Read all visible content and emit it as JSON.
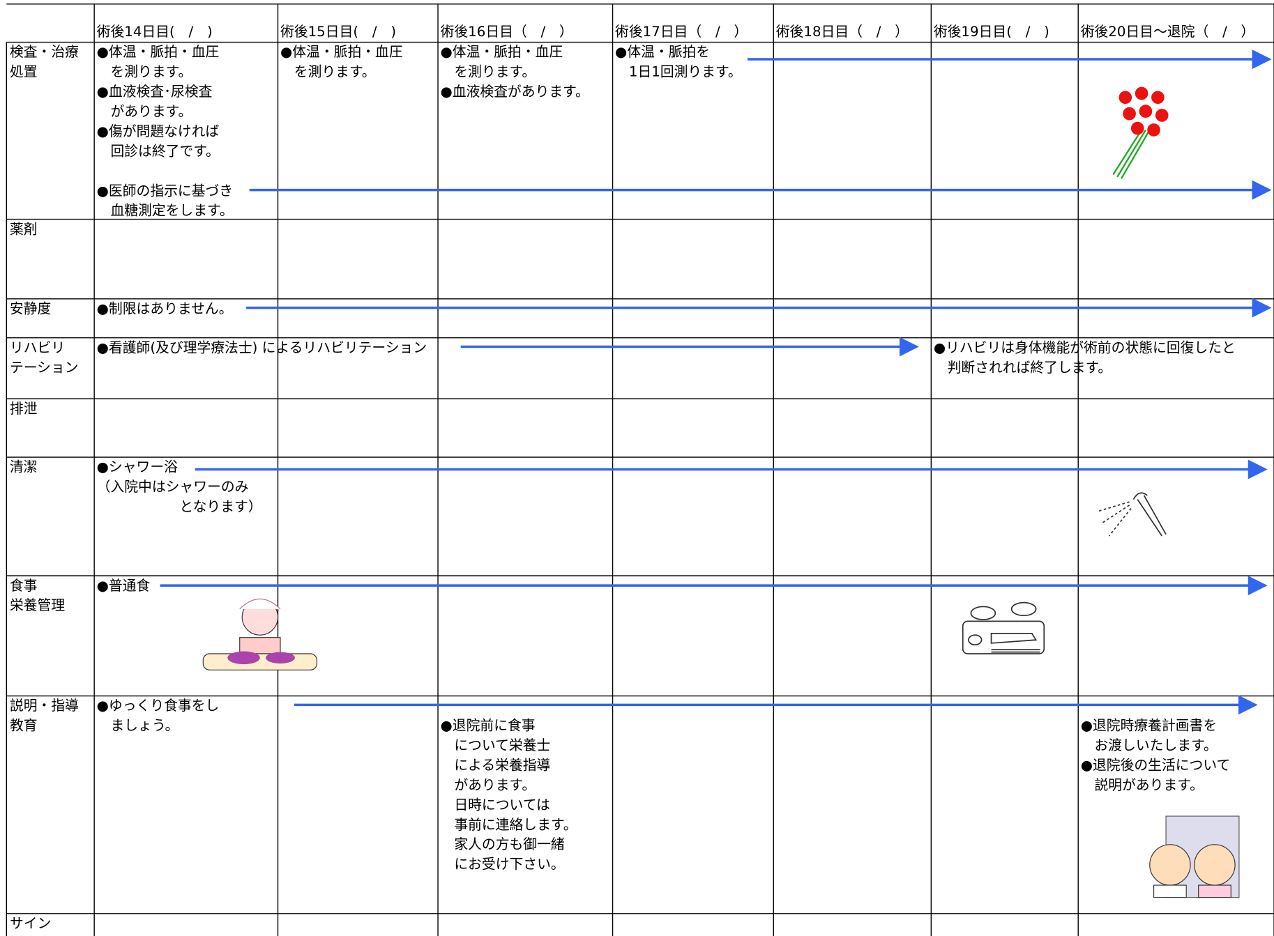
{
  "table": {
    "header": [
      "術後14日目(　/　)",
      "術後15日目(　/　)",
      "術後16日目（　/　）",
      "術後17日目（　/　）",
      "術後18日目（　/　）",
      "術後19日目(　/　)",
      "術後20日目～退院（　/　）"
    ],
    "rows": [
      {
        "label": [
          "検査・治療",
          "処置"
        ],
        "cells": [
          [
            "●体温・脈拍・血圧",
            "　を測ります。",
            "●血液検査･尿検査",
            "　があります。",
            "●傷が問題なければ",
            "　回診は終了です。",
            null,
            "●医師の指示に基づき",
            "　血糖測定をします。"
          ],
          [
            "●体温・脈拍・血圧",
            "　を測ります。"
          ],
          [
            "●体温・脈拍・血圧",
            "　を測ります。",
            "●血液検査があります。"
          ],
          [
            "●体温・脈拍を",
            "　1日1回測ります。"
          ],
          null,
          null,
          null
        ]
      },
      {
        "label": [
          "薬剤"
        ],
        "cells": [
          null,
          null,
          null,
          null,
          null,
          null,
          null
        ]
      },
      {
        "label": [
          "安静度"
        ],
        "cells": [
          [
            "●制限はありません。"
          ],
          null,
          null,
          null,
          null,
          null,
          null
        ]
      },
      {
        "label": [
          "リハビリ",
          "テーション"
        ],
        "cells": [
          [
            "●看護師(及び理学療法士) によるリハビリテーション"
          ],
          null,
          null,
          null,
          null,
          [
            "●リハビリは身体機能が術前の状態に回復したと",
            "　判断されれば終了します。"
          ],
          null
        ]
      },
      {
        "label": [
          "排泄"
        ],
        "cells": [
          null,
          null,
          null,
          null,
          null,
          null,
          null
        ]
      },
      {
        "label": [
          "清潔"
        ],
        "cells": [
          [
            "●シャワー浴",
            "（入院中はシャワーのみ",
            "　　　　　　となります）"
          ],
          null,
          null,
          null,
          null,
          null,
          null
        ]
      },
      {
        "label": [
          "食事",
          "栄養管理"
        ],
        "cells": [
          [
            "●普通食"
          ],
          null,
          null,
          null,
          null,
          null,
          null
        ]
      },
      {
        "label": [
          "説明・指導",
          "教育"
        ],
        "cells": [
          [
            "●ゆっくり食事をし",
            "　ましょう。"
          ],
          null,
          [
            null,
            "●退院前に食事",
            "　について栄養士",
            "　による栄養指導",
            "　があります。",
            "　日時については",
            "　事前に連絡します。",
            "　家人の方も御一緒",
            "　にお受け下さい。"
          ],
          null,
          null,
          null,
          [
            null,
            "●退院時療養計画書を",
            "　お渡しいたします。",
            "●退院後の生活について",
            "　説明があります。"
          ]
        ]
      },
      {
        "label": [
          "サイン"
        ],
        "cells": [
          null,
          null,
          null,
          null,
          null,
          null,
          null
        ]
      }
    ]
  }
}
